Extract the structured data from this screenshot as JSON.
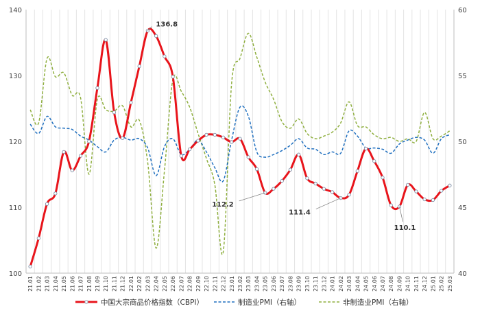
{
  "chart_data": {
    "type": "line",
    "x": [
      "21.01",
      "21.02",
      "21.03",
      "21.04",
      "21.05",
      "21.06",
      "21.07",
      "21.08",
      "21.09",
      "21.10",
      "21.11",
      "21.12",
      "22.01",
      "22.02",
      "22.03",
      "22.04",
      "22.05",
      "22.06",
      "22.07",
      "22.08",
      "22.09",
      "22.10",
      "22.11",
      "22.12",
      "23.01",
      "23.02",
      "23.03",
      "23.04",
      "23.05",
      "23.06",
      "23.07",
      "23.08",
      "23.09",
      "23.10",
      "23.11",
      "23.12",
      "24.01",
      "24.02",
      "24.03",
      "24.04",
      "24.05",
      "24.06",
      "24.07",
      "24.08",
      "24.09",
      "24.10",
      "24.11",
      "24.12",
      "25.01",
      "25.02",
      "25.03"
    ],
    "series": [
      {
        "name": "中国大宗商品价格指数（CBPI）",
        "axis": "left",
        "color": "#e8141b",
        "style": "solid",
        "values": [
          101.0,
          105.3,
          110.5,
          112.1,
          118.4,
          115.6,
          117.8,
          120.0,
          128.1,
          135.4,
          124.4,
          120.5,
          125.9,
          131.4,
          136.8,
          136.0,
          132.9,
          129.8,
          117.8,
          118.8,
          120.1,
          121.0,
          121.0,
          120.6,
          119.9,
          120.4,
          117.6,
          115.8,
          112.2,
          112.8,
          114.0,
          115.7,
          118.0,
          114.4,
          113.6,
          112.8,
          112.3,
          111.4,
          111.9,
          115.5,
          118.9,
          117.0,
          114.5,
          110.3,
          110.1,
          113.4,
          112.4,
          111.2,
          111.1,
          112.5,
          113.3
        ]
      },
      {
        "name": "制造业PMI（右轴）",
        "axis": "right",
        "color": "#1f6fbf",
        "style": "dashed",
        "values": [
          51.3,
          50.6,
          51.9,
          51.1,
          51.0,
          50.9,
          50.4,
          50.1,
          49.6,
          49.2,
          50.1,
          50.3,
          50.1,
          50.2,
          49.5,
          47.4,
          49.6,
          50.2,
          49.0,
          49.4,
          50.1,
          49.2,
          48.0,
          47.0,
          50.1,
          52.6,
          51.9,
          49.2,
          48.8,
          49.0,
          49.3,
          49.7,
          50.2,
          49.5,
          49.4,
          49.0,
          49.2,
          49.1,
          50.8,
          50.4,
          49.5,
          49.5,
          49.4,
          49.1,
          49.8,
          50.1,
          50.3,
          50.1,
          49.1,
          50.2,
          50.5
        ]
      },
      {
        "name": "非制造业PMI（右轴）",
        "axis": "right",
        "color": "#8faf3f",
        "style": "dashed",
        "values": [
          52.4,
          51.4,
          56.3,
          54.9,
          55.2,
          53.5,
          53.3,
          47.5,
          53.2,
          52.4,
          52.3,
          52.7,
          51.1,
          51.6,
          48.4,
          41.9,
          47.8,
          54.7,
          53.8,
          52.6,
          50.6,
          48.7,
          46.7,
          41.6,
          54.4,
          56.3,
          58.2,
          56.4,
          54.5,
          53.2,
          51.5,
          51.0,
          51.7,
          50.6,
          50.2,
          50.4,
          50.7,
          51.4,
          53.0,
          51.2,
          51.1,
          50.5,
          50.2,
          50.3,
          50.0,
          50.2,
          50.0,
          52.2,
          50.2,
          50.4,
          50.8
        ]
      }
    ],
    "annotations": [
      {
        "series": 0,
        "index": 14,
        "label": "136.8"
      },
      {
        "series": 0,
        "index": 28,
        "label": "112.2"
      },
      {
        "series": 0,
        "index": 37,
        "label": "111.4"
      },
      {
        "series": 0,
        "index": 44,
        "label": "110.1"
      }
    ],
    "ylim_left": [
      100,
      140
    ],
    "yticks_left": [
      "100",
      "110",
      "120",
      "130",
      "140"
    ],
    "ylim_right": [
      40,
      60
    ],
    "yticks_right": [
      "40",
      "45",
      "50",
      "55",
      "60"
    ],
    "grid": "vertical",
    "legend": "bottom"
  }
}
